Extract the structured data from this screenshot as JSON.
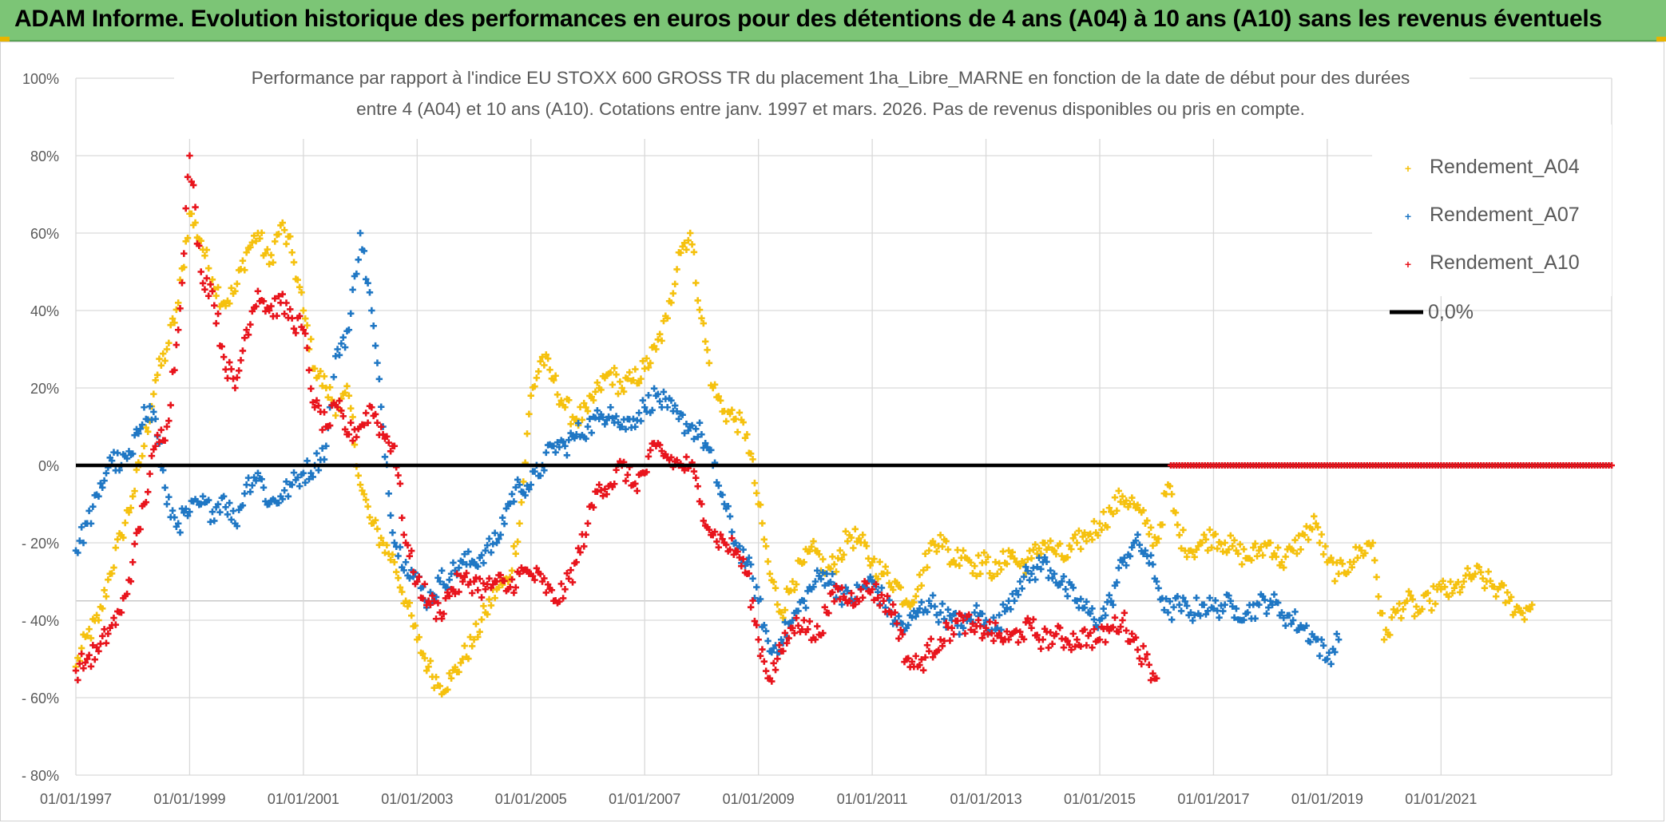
{
  "banner": {
    "title": "ADAM Informe. Evolution historique des performances en euros pour des détentions de 4 ans (A04) à 10 ans (A10) sans les revenus éventuels"
  },
  "colors": {
    "banner_bg": "#7cc576",
    "a04": "#f5c10e",
    "a07": "#1f77c4",
    "a10": "#e8141c",
    "zero_line": "#000000"
  },
  "chart_data": {
    "type": "scatter",
    "title_line1": "Performance  par rapport à l'indice EU STOXX 600 GROSS TR  du placement 1ha_Libre_MARNE en fonction de la date de début pour des durées",
    "title_line2": "entre 4 (A04) et 10 ans (A10). Cotations entre janv. 1997 et mars. 2026. Pas de revenus disponibles ou pris en compte.",
    "xlabel": "",
    "ylabel": "",
    "xlim": [
      1997.0,
      2024.0
    ],
    "ylim": [
      -80,
      100
    ],
    "y_ticks": [
      100,
      80,
      60,
      40,
      20,
      0,
      -20,
      -40,
      -60,
      -80
    ],
    "y_tick_labels": [
      "100%",
      "80%",
      "60%",
      "40%",
      "20%",
      "0%",
      "- 20%",
      "- 40%",
      "- 60%",
      "- 80%"
    ],
    "x_ticks": [
      1997,
      1999,
      2001,
      2003,
      2005,
      2007,
      2009,
      2011,
      2013,
      2015,
      2017,
      2019,
      2021
    ],
    "x_tick_labels": [
      "01/01/1997",
      "01/01/1999",
      "01/01/2001",
      "01/01/2003",
      "01/01/2005",
      "01/01/2007",
      "01/01/2009",
      "01/01/2011",
      "01/01/2013",
      "01/01/2015",
      "01/01/2017",
      "01/01/2019",
      "01/01/2021"
    ],
    "grid": true,
    "legend_position": "top-right",
    "legend": [
      "Rendement_A04",
      "Rendement_A07",
      "Rendement_A10",
      "0,0%"
    ],
    "series": [
      {
        "name": "Rendement_A04",
        "x": [
          1997.0,
          1997.2,
          1997.4,
          1997.6,
          1997.8,
          1998.0,
          1998.2,
          1998.4,
          1998.6,
          1998.8,
          1999.0,
          1999.2,
          1999.4,
          1999.6,
          1999.8,
          2000.0,
          2000.2,
          2000.4,
          2000.6,
          2000.8,
          2001.0,
          2001.2,
          2001.4,
          2001.6,
          2001.8,
          2002.0,
          2002.2,
          2002.4,
          2002.6,
          2002.8,
          2003.0,
          2003.2,
          2003.4,
          2003.6,
          2003.8,
          2004.0,
          2004.2,
          2004.4,
          2004.6,
          2004.8,
          2005.0,
          2005.2,
          2005.4,
          2005.6,
          2005.8,
          2006.0,
          2006.2,
          2006.4,
          2006.6,
          2006.8,
          2007.0,
          2007.2,
          2007.4,
          2007.6,
          2007.8,
          2008.0,
          2008.2,
          2008.4,
          2008.6,
          2008.8,
          2009.0,
          2009.2,
          2009.4,
          2009.6,
          2009.8,
          2010.0,
          2010.2,
          2010.4,
          2010.6,
          2010.8,
          2011.0,
          2011.2,
          2011.4,
          2011.6,
          2011.8,
          2012.0,
          2012.2,
          2012.4,
          2012.6,
          2012.8,
          2013.0,
          2013.2,
          2013.4,
          2013.6,
          2013.8,
          2014.0,
          2014.2,
          2014.4,
          2014.6,
          2014.8,
          2015.0,
          2015.2,
          2015.4,
          2015.6,
          2015.8,
          2016.0,
          2016.2,
          2016.4,
          2016.6,
          2016.8,
          2017.0,
          2017.2,
          2017.4,
          2017.6,
          2017.8,
          2018.0,
          2018.2,
          2018.4,
          2018.6,
          2018.8,
          2019.0,
          2019.2,
          2019.4,
          2019.6,
          2019.8,
          2020.0,
          2020.2,
          2020.4,
          2020.6,
          2020.8,
          2021.0,
          2021.2,
          2021.4,
          2021.6,
          2021.8,
          2022.0,
          2022.2,
          2022.4,
          2022.6
        ],
        "y": [
          -52,
          -44,
          -40,
          -28,
          -18,
          -8,
          5,
          22,
          30,
          42,
          65,
          58,
          48,
          42,
          45,
          55,
          60,
          52,
          62,
          55,
          40,
          25,
          20,
          15,
          18,
          -5,
          -15,
          -20,
          -25,
          -35,
          -45,
          -52,
          -57,
          -55,
          -50,
          -45,
          -38,
          -32,
          -30,
          -15,
          18,
          28,
          22,
          15,
          12,
          14,
          20,
          24,
          20,
          22,
          25,
          30,
          38,
          55,
          60,
          38,
          20,
          14,
          12,
          8,
          -10,
          -28,
          -38,
          -30,
          -25,
          -22,
          -28,
          -24,
          -18,
          -20,
          -25,
          -28,
          -30,
          -35,
          -32,
          -22,
          -18,
          -25,
          -22,
          -26,
          -25,
          -28,
          -22,
          -26,
          -24,
          -20,
          -22,
          -24,
          -20,
          -18,
          -15,
          -12,
          -8,
          -10,
          -15,
          -20,
          -5,
          -18,
          -22,
          -20,
          -18,
          -20,
          -22,
          -24,
          -22,
          -20,
          -25,
          -22,
          -18,
          -15,
          -25,
          -28,
          -25,
          -22,
          -20,
          -45,
          -38,
          -35,
          -38,
          -35,
          -32,
          -33,
          -30,
          -28,
          -30,
          -32,
          -35,
          -38,
          -36
        ]
      },
      {
        "name": "Rendement_A07",
        "x": [
          1997.0,
          1997.2,
          1997.4,
          1997.6,
          1997.8,
          1998.0,
          1998.2,
          1998.4,
          1998.6,
          1998.8,
          1999.0,
          1999.2,
          1999.4,
          1999.6,
          1999.8,
          2000.0,
          2000.2,
          2000.4,
          2000.6,
          2000.8,
          2001.0,
          2001.2,
          2001.4,
          2001.6,
          2001.8,
          2002.0,
          2002.2,
          2002.4,
          2002.6,
          2002.8,
          2003.0,
          2003.2,
          2003.4,
          2003.6,
          2003.8,
          2004.0,
          2004.2,
          2004.4,
          2004.6,
          2004.8,
          2005.0,
          2005.2,
          2005.4,
          2005.6,
          2005.8,
          2006.0,
          2006.2,
          2006.4,
          2006.6,
          2006.8,
          2007.0,
          2007.2,
          2007.4,
          2007.6,
          2007.8,
          2008.0,
          2008.2,
          2008.4,
          2008.6,
          2008.8,
          2009.0,
          2009.2,
          2009.4,
          2009.6,
          2009.8,
          2010.0,
          2010.2,
          2010.4,
          2010.6,
          2010.8,
          2011.0,
          2011.2,
          2011.4,
          2011.6,
          2011.8,
          2012.0,
          2012.2,
          2012.4,
          2012.6,
          2012.8,
          2013.0,
          2013.2,
          2013.4,
          2013.6,
          2013.8,
          2014.0,
          2014.2,
          2014.4,
          2014.6,
          2014.8,
          2015.0,
          2015.2,
          2015.4,
          2015.6,
          2015.8,
          2016.0,
          2016.2,
          2016.4,
          2016.6,
          2016.8,
          2017.0,
          2017.2,
          2017.4,
          2017.6,
          2017.8,
          2018.0,
          2018.2,
          2018.4,
          2018.6,
          2018.8,
          2019.0,
          2019.2
        ],
        "y": [
          -22,
          -15,
          -8,
          2,
          0,
          3,
          15,
          12,
          -10,
          -15,
          -12,
          -10,
          -12,
          -8,
          -15,
          -5,
          -2,
          -10,
          -8,
          -5,
          -2,
          0,
          5,
          30,
          35,
          60,
          40,
          10,
          -20,
          -25,
          -30,
          -35,
          -30,
          -28,
          -25,
          -25,
          -22,
          -20,
          -10,
          -5,
          -5,
          0,
          5,
          5,
          8,
          10,
          12,
          15,
          10,
          12,
          15,
          18,
          15,
          12,
          10,
          8,
          0,
          -10,
          -20,
          -25,
          -35,
          -48,
          -45,
          -40,
          -35,
          -30,
          -28,
          -32,
          -35,
          -32,
          -30,
          -35,
          -40,
          -42,
          -38,
          -35,
          -38,
          -40,
          -42,
          -38,
          -40,
          -42,
          -35,
          -30,
          -28,
          -25,
          -28,
          -32,
          -35,
          -38,
          -40,
          -35,
          -25,
          -20,
          -22,
          -30,
          -38,
          -36,
          -38,
          -36,
          -37,
          -36,
          -37,
          -38,
          -36,
          -35,
          -38,
          -40,
          -42,
          -45,
          -50,
          -45
        ]
      },
      {
        "name": "Rendement_A10",
        "x": [
          1997.0,
          1997.2,
          1997.4,
          1997.6,
          1997.8,
          1998.0,
          1998.2,
          1998.4,
          1998.6,
          1998.8,
          1999.0,
          1999.2,
          1999.4,
          1999.6,
          1999.8,
          2000.0,
          2000.2,
          2000.4,
          2000.6,
          2000.8,
          2001.0,
          2001.2,
          2001.4,
          2001.6,
          2001.8,
          2002.0,
          2002.2,
          2002.4,
          2002.6,
          2002.8,
          2003.0,
          2003.2,
          2003.4,
          2003.6,
          2003.8,
          2004.0,
          2004.2,
          2004.4,
          2004.6,
          2004.8,
          2005.0,
          2005.2,
          2005.4,
          2005.6,
          2005.8,
          2006.0,
          2006.2,
          2006.4,
          2006.6,
          2006.8,
          2007.0,
          2007.2,
          2007.4,
          2007.6,
          2007.8,
          2008.0,
          2008.2,
          2008.4,
          2008.6,
          2008.8,
          2009.0,
          2009.2,
          2009.4,
          2009.6,
          2009.8,
          2010.0,
          2010.2,
          2010.4,
          2010.6,
          2010.8,
          2011.0,
          2011.2,
          2011.4,
          2011.6,
          2011.8,
          2012.0,
          2012.2,
          2012.4,
          2012.6,
          2012.8,
          2013.0,
          2013.2,
          2013.4,
          2013.6,
          2013.8,
          2014.0,
          2014.2,
          2014.4,
          2014.6,
          2014.8,
          2015.0,
          2015.2,
          2015.4,
          2015.6,
          2015.8,
          2016.0
        ],
        "y": [
          -53,
          -50,
          -48,
          -42,
          -38,
          -25,
          -10,
          5,
          10,
          35,
          80,
          50,
          45,
          28,
          20,
          35,
          45,
          40,
          42,
          38,
          35,
          15,
          10,
          15,
          8,
          10,
          15,
          8,
          5,
          -20,
          -30,
          -35,
          -38,
          -32,
          -30,
          -30,
          -32,
          -30,
          -32,
          -28,
          -28,
          -30,
          -35,
          -32,
          -25,
          -15,
          -5,
          -5,
          0,
          -5,
          -2,
          5,
          2,
          0,
          0,
          -10,
          -18,
          -20,
          -22,
          -28,
          -45,
          -55,
          -48,
          -42,
          -40,
          -45,
          -38,
          -32,
          -35,
          -32,
          -32,
          -35,
          -38,
          -50,
          -52,
          -48,
          -45,
          -42,
          -40,
          -43,
          -42,
          -44,
          -45,
          -43,
          -42,
          -45,
          -44,
          -45,
          -45,
          -44,
          -45,
          -42,
          -40,
          -45,
          -50,
          -55
        ]
      },
      {
        "name": "0,0%",
        "x": [
          1997.0,
          2024.0
        ],
        "y": [
          0,
          0
        ]
      }
    ],
    "tail_zero_range": [
      2016.25,
      2024.0
    ]
  }
}
